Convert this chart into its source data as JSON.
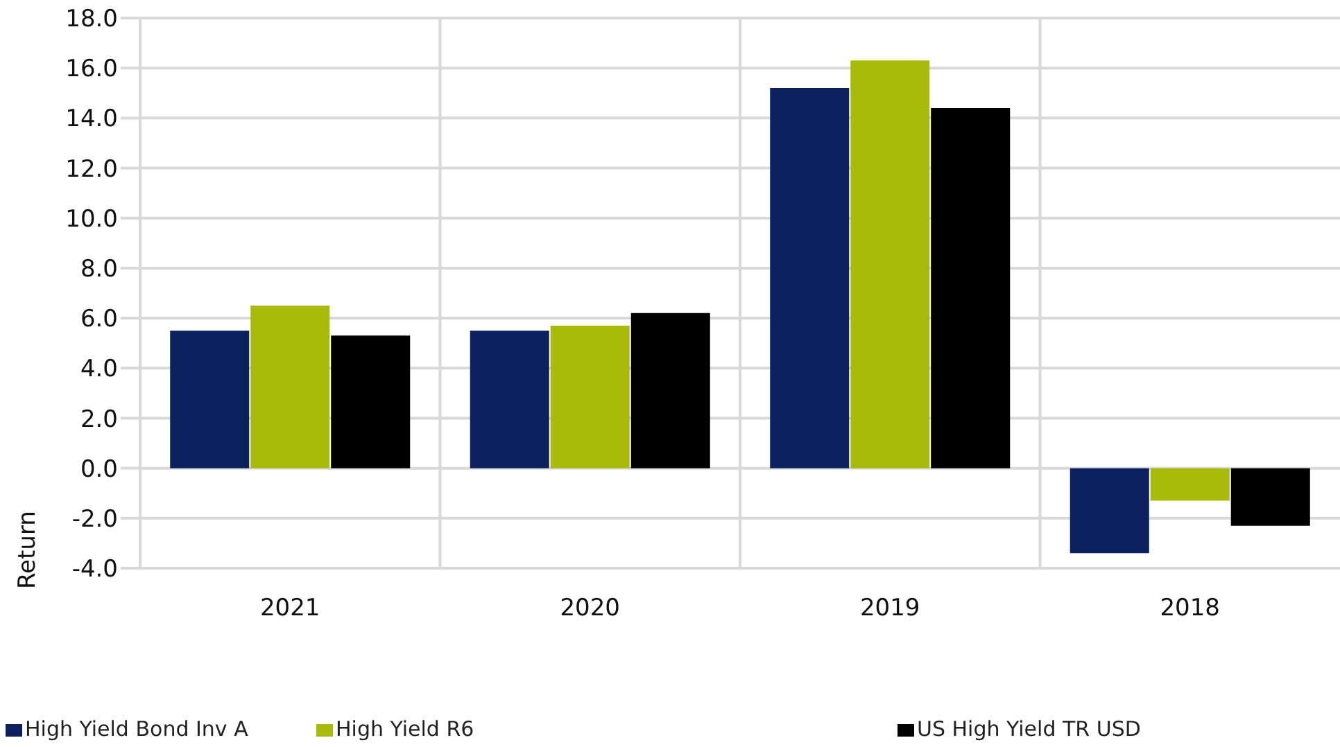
{
  "chart_data": {
    "type": "bar",
    "ylabel": "Return",
    "categories": [
      "2021",
      "2020",
      "2019",
      "2018"
    ],
    "series": [
      {
        "name": "High Yield Bond Inv A",
        "color": "#0c1f5f",
        "values": [
          5.5,
          5.5,
          15.2,
          -3.4
        ]
      },
      {
        "name": "High Yield R6",
        "color": "#a8bb0a",
        "values": [
          6.5,
          5.7,
          16.3,
          -1.3
        ]
      },
      {
        "name": "US High Yield TR USD",
        "color": "#000000",
        "values": [
          5.3,
          6.2,
          14.4,
          -2.3
        ]
      }
    ],
    "ylim": [
      -4,
      18
    ],
    "yticks": [
      {
        "value": -4,
        "label": "-4.0"
      },
      {
        "value": -2,
        "label": "-2.0"
      },
      {
        "value": 0,
        "label": "0.0"
      },
      {
        "value": 2,
        "label": "2.0"
      },
      {
        "value": 4,
        "label": "4.0"
      },
      {
        "value": 6,
        "label": "6.0"
      },
      {
        "value": 8,
        "label": "8.0"
      },
      {
        "value": 10,
        "label": "10.0"
      },
      {
        "value": 12,
        "label": "12.0"
      },
      {
        "value": 14,
        "label": "14.0"
      },
      {
        "value": 16,
        "label": "16.0"
      },
      {
        "value": 18,
        "label": "18.0"
      }
    ],
    "grid": true,
    "legend": "bottom"
  }
}
